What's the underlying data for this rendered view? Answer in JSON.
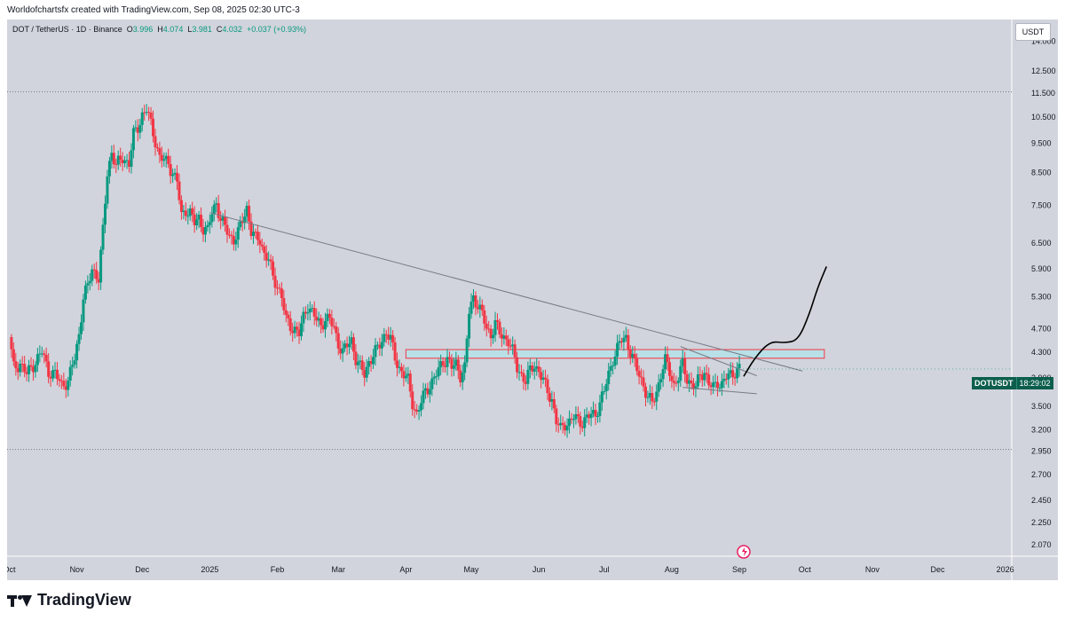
{
  "header": {
    "caption": "Worldofchartsfx created with TradingView.com, Sep 08, 2025 02:30 UTC-3"
  },
  "symbol": {
    "name": "DOT / TetherUS · 1D · Binance",
    "open_label": "O",
    "open": "3.996",
    "high_label": "H",
    "high": "4.074",
    "low_label": "L",
    "low": "3.981",
    "close_label": "C",
    "close": "4.032",
    "change": "+0.037 (+0.93%)"
  },
  "currency_button": "USDT",
  "price_badge": {
    "symbol": "DOTUSDT",
    "countdown": "18:29:02"
  },
  "brand": {
    "name": "TradingView"
  },
  "colors": {
    "up": "#089981",
    "down": "#f23645",
    "background": "#d1d4dc",
    "trendline": "#787b86",
    "zone_fill": "#b8e0e6",
    "zone_border": "#f23645"
  },
  "chart_data": {
    "type": "candlestick",
    "title": "DOT / TetherUS · 1D · Binance",
    "y_scale": "log",
    "ylim": [
      1.98,
      15.2
    ],
    "y_ticks": [
      "14.000",
      "12.500",
      "11.500",
      "10.500",
      "9.500",
      "8.500",
      "7.500",
      "6.500",
      "5.900",
      "5.300",
      "4.700",
      "4.300",
      "3.900",
      "3.500",
      "3.200",
      "2.950",
      "2.700",
      "2.450",
      "2.250",
      "2.070"
    ],
    "x_ticks": [
      {
        "label": "Oct",
        "day": 0
      },
      {
        "label": "Nov",
        "day": 31
      },
      {
        "label": "Dec",
        "day": 61
      },
      {
        "label": "2025",
        "day": 92
      },
      {
        "label": "Feb",
        "day": 123
      },
      {
        "label": "Mar",
        "day": 151
      },
      {
        "label": "Apr",
        "day": 182
      },
      {
        "label": "May",
        "day": 212
      },
      {
        "label": "Jun",
        "day": 243
      },
      {
        "label": "Jul",
        "day": 273
      },
      {
        "label": "Aug",
        "day": 304
      },
      {
        "label": "Sep",
        "day": 335
      },
      {
        "label": "Oct",
        "day": 365
      },
      {
        "label": "Nov",
        "day": 396
      },
      {
        "label": "Dec",
        "day": 426
      },
      {
        "label": "2026",
        "day": 457
      }
    ],
    "x_range_days": [
      -1,
      460
    ],
    "close_path": [
      [
        0,
        4.55
      ],
      [
        2,
        4.05
      ],
      [
        5,
        4.12
      ],
      [
        8,
        3.95
      ],
      [
        12,
        4.15
      ],
      [
        15,
        4.3
      ],
      [
        18,
        4.0
      ],
      [
        21,
        3.95
      ],
      [
        24,
        3.8
      ],
      [
        27,
        3.85
      ],
      [
        30,
        4.2
      ],
      [
        32,
        4.6
      ],
      [
        34,
        5.3
      ],
      [
        36,
        5.5
      ],
      [
        38,
        5.9
      ],
      [
        41,
        5.7
      ],
      [
        43,
        6.8
      ],
      [
        45,
        8.5
      ],
      [
        47,
        9.2
      ],
      [
        49,
        8.7
      ],
      [
        52,
        9.0
      ],
      [
        55,
        8.8
      ],
      [
        57,
        9.8
      ],
      [
        59,
        10.1
      ],
      [
        61,
        10.6
      ],
      [
        63,
        10.8
      ],
      [
        65,
        10.2
      ],
      [
        67,
        9.6
      ],
      [
        69,
        9.0
      ],
      [
        71,
        8.9
      ],
      [
        73,
        8.8
      ],
      [
        75,
        8.5
      ],
      [
        77,
        8.2
      ],
      [
        79,
        7.2
      ],
      [
        81,
        7.4
      ],
      [
        83,
        7.3
      ],
      [
        85,
        7.0
      ],
      [
        87,
        7.15
      ],
      [
        89,
        6.9
      ],
      [
        91,
        6.8
      ],
      [
        93,
        7.3
      ],
      [
        95,
        7.6
      ],
      [
        97,
        7.1
      ],
      [
        99,
        6.9
      ],
      [
        101,
        6.7
      ],
      [
        103,
        6.6
      ],
      [
        105,
        6.75
      ],
      [
        107,
        7.1
      ],
      [
        109,
        7.45
      ],
      [
        111,
        6.8
      ],
      [
        113,
        6.6
      ],
      [
        115,
        6.6
      ],
      [
        117,
        6.25
      ],
      [
        119,
        6.1
      ],
      [
        121,
        5.7
      ],
      [
        123,
        5.55
      ],
      [
        125,
        5.3
      ],
      [
        127,
        4.85
      ],
      [
        129,
        4.75
      ],
      [
        131,
        4.7
      ],
      [
        133,
        4.6
      ],
      [
        135,
        4.9
      ],
      [
        137,
        5.15
      ],
      [
        139,
        5.0
      ],
      [
        141,
        4.85
      ],
      [
        143,
        4.75
      ],
      [
        145,
        4.9
      ],
      [
        147,
        4.85
      ],
      [
        149,
        4.7
      ],
      [
        151,
        4.45
      ],
      [
        153,
        4.3
      ],
      [
        155,
        4.4
      ],
      [
        157,
        4.5
      ],
      [
        159,
        4.2
      ],
      [
        161,
        4.05
      ],
      [
        163,
        3.95
      ],
      [
        165,
        4.15
      ],
      [
        167,
        4.25
      ],
      [
        169,
        4.35
      ],
      [
        171,
        4.5
      ],
      [
        173,
        4.65
      ],
      [
        175,
        4.5
      ],
      [
        177,
        4.2
      ],
      [
        179,
        4.05
      ],
      [
        181,
        3.95
      ],
      [
        183,
        3.85
      ],
      [
        185,
        3.55
      ],
      [
        187,
        3.4
      ],
      [
        189,
        3.55
      ],
      [
        191,
        3.7
      ],
      [
        193,
        3.8
      ],
      [
        195,
        3.9
      ],
      [
        197,
        4.0
      ],
      [
        199,
        4.15
      ],
      [
        201,
        4.2
      ],
      [
        203,
        4.05
      ],
      [
        205,
        4.1
      ],
      [
        207,
        3.95
      ],
      [
        209,
        4.05
      ],
      [
        211,
        5.0
      ],
      [
        213,
        5.3
      ],
      [
        215,
        5.15
      ],
      [
        217,
        4.95
      ],
      [
        219,
        4.7
      ],
      [
        221,
        4.6
      ],
      [
        223,
        4.8
      ],
      [
        225,
        4.6
      ],
      [
        227,
        4.55
      ],
      [
        229,
        4.5
      ],
      [
        231,
        4.3
      ],
      [
        233,
        4.05
      ],
      [
        235,
        3.95
      ],
      [
        237,
        3.85
      ],
      [
        239,
        4.0
      ],
      [
        241,
        4.1
      ],
      [
        243,
        4.0
      ],
      [
        245,
        3.85
      ],
      [
        247,
        3.7
      ],
      [
        249,
        3.6
      ],
      [
        251,
        3.3
      ],
      [
        253,
        3.2
      ],
      [
        255,
        3.28
      ],
      [
        257,
        3.3
      ],
      [
        259,
        3.35
      ],
      [
        261,
        3.32
      ],
      [
        263,
        3.3
      ],
      [
        265,
        3.35
      ],
      [
        267,
        3.38
      ],
      [
        269,
        3.4
      ],
      [
        271,
        3.55
      ],
      [
        273,
        3.7
      ],
      [
        275,
        3.95
      ],
      [
        277,
        4.2
      ],
      [
        279,
        4.35
      ],
      [
        281,
        4.5
      ],
      [
        283,
        4.55
      ],
      [
        285,
        4.3
      ],
      [
        287,
        4.1
      ],
      [
        289,
        3.95
      ],
      [
        291,
        3.8
      ],
      [
        293,
        3.6
      ],
      [
        295,
        3.55
      ],
      [
        297,
        3.7
      ],
      [
        299,
        3.95
      ],
      [
        301,
        4.15
      ],
      [
        303,
        4.0
      ],
      [
        305,
        3.8
      ],
      [
        307,
        3.9
      ],
      [
        309,
        4.1
      ],
      [
        311,
        3.9
      ],
      [
        313,
        3.8
      ],
      [
        315,
        3.75
      ],
      [
        317,
        3.95
      ],
      [
        319,
        4.0
      ],
      [
        321,
        3.8
      ],
      [
        323,
        3.75
      ],
      [
        325,
        3.85
      ],
      [
        327,
        3.8
      ],
      [
        329,
        3.9
      ],
      [
        331,
        3.95
      ],
      [
        333,
        4.0
      ],
      [
        335,
        4.032
      ]
    ],
    "annotations": [
      {
        "type": "trendline",
        "points": [
          [
            92,
            7.3
          ],
          [
            364,
            4.0
          ]
        ]
      },
      {
        "type": "trendline",
        "points": [
          [
            308,
            4.39
          ],
          [
            343,
            3.93
          ]
        ]
      },
      {
        "type": "trendline",
        "points": [
          [
            309,
            3.76
          ],
          [
            343,
            3.67
          ]
        ]
      },
      {
        "type": "zone",
        "days": [
          182,
          374
        ],
        "top": 4.34,
        "bottom": 4.2
      },
      {
        "type": "dotted_level",
        "price": 11.55
      },
      {
        "type": "dotted_level",
        "price": 2.97
      },
      {
        "type": "projection",
        "points": [
          [
            337,
            3.92
          ],
          [
            342,
            4.2
          ],
          [
            349,
            4.48
          ],
          [
            356,
            4.45
          ],
          [
            362,
            4.5
          ],
          [
            367,
            4.95
          ],
          [
            371,
            5.5
          ],
          [
            375,
            5.95
          ]
        ]
      }
    ]
  }
}
